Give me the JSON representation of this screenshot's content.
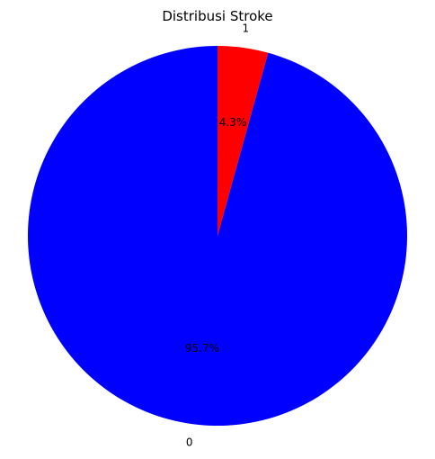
{
  "chart_data": {
    "type": "pie",
    "title": "Distribusi Stroke",
    "categories": [
      "0",
      "1"
    ],
    "values": [
      95.7,
      4.3
    ],
    "value_labels": [
      "95.7%",
      "4.3%"
    ],
    "colors": [
      "#0000ff",
      "#ff0000"
    ],
    "start_angle_deg": 90,
    "direction": "counterclockwise",
    "legend": "none"
  }
}
